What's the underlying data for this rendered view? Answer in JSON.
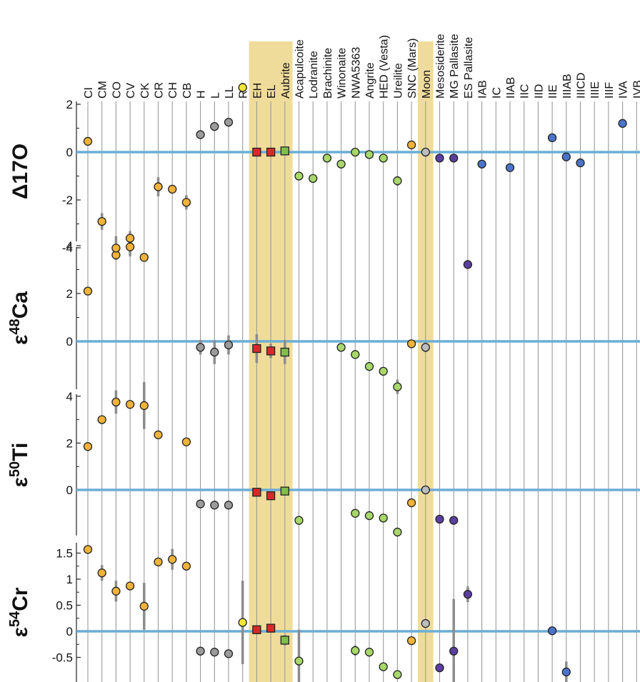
{
  "colors": {
    "carbonaceous": "#f0b33a",
    "ordinary": "#9b9b9b",
    "rumuruti": "#f2e63a",
    "enstatite": "#d62a2a",
    "aubrite": "#7fbf4a",
    "achondrite": "#a7d86a",
    "moon": "#bdbdbd",
    "mesosiderite": "#5a3fa0",
    "iron": "#4b74c9",
    "highlight": "#f0dc9a",
    "zeroline": "#6aaed6",
    "errorbar": "#8c8c8c",
    "gridline": "#9a9a9a"
  },
  "chart_data": {
    "type": "scatter",
    "categories": [
      "CI",
      "CM",
      "CO",
      "CV",
      "CK",
      "CR",
      "CH",
      "CB",
      "H",
      "L",
      "LL",
      "R",
      "EH",
      "EL",
      "Aubrite",
      "Acapulcoite",
      "Lodranite",
      "Brachinite",
      "Winonaite",
      "NWA5363",
      "Angrite",
      "HED (Vesta)",
      "Ureilite",
      "SNC (Mars)",
      "Moon",
      "Mesosiderite",
      "MG Pallasite",
      "ES Pallasite",
      "IAB",
      "IC",
      "IIAB",
      "IIC",
      "IID",
      "IIE",
      "IIIAB",
      "IIICD",
      "IIIE",
      "IIIF",
      "IVA",
      "IVB"
    ],
    "category_groups": [
      "carbonaceous",
      "carbonaceous",
      "carbonaceous",
      "carbonaceous",
      "carbonaceous",
      "carbonaceous",
      "carbonaceous",
      "carbonaceous",
      "ordinary",
      "ordinary",
      "ordinary",
      "rumuruti",
      "enstatite",
      "enstatite",
      "aubrite",
      "achondrite",
      "achondrite",
      "achondrite",
      "achondrite",
      "achondrite",
      "achondrite",
      "achondrite",
      "achondrite",
      "carbonaceous",
      "moon",
      "mesosiderite",
      "mesosiderite",
      "mesosiderite",
      "iron",
      "iron",
      "iron",
      "iron",
      "iron",
      "iron",
      "iron",
      "iron",
      "iron",
      "iron",
      "iron",
      "iron"
    ],
    "highlighted_categories": [
      "EH",
      "EL",
      "Aubrite",
      "Moon"
    ],
    "square_markers": [
      "EH",
      "EL",
      "Aubrite"
    ],
    "panels": [
      {
        "ylabel_base": "Δ",
        "ylabel_sup": "",
        "ylabel_rest": "17O",
        "ylim": [
          -5.2,
          3
        ],
        "yticks": [
          2,
          0,
          -2,
          -4
        ],
        "ytick_labels": [
          "2",
          "0",
          "-2",
          "-4"
        ],
        "points": [
          {
            "cat": 0,
            "y": 0.45,
            "err": 0.15
          },
          {
            "cat": 1,
            "y": -2.9,
            "err": 0.35
          },
          {
            "cat": 2,
            "y": -4.3,
            "err": 0.2
          },
          {
            "cat": 3,
            "y": -3.6,
            "err": 0.3
          },
          {
            "cat": 4,
            "y": -4.4,
            "err": 0.15
          },
          {
            "cat": 5,
            "y": -1.45,
            "err": 0.4
          },
          {
            "cat": 6,
            "y": -1.55,
            "err": 0.1
          },
          {
            "cat": 7,
            "y": -2.1,
            "err": 0.3
          },
          {
            "cat": 8,
            "y": 0.73,
            "err": 0.08
          },
          {
            "cat": 9,
            "y": 1.07,
            "err": 0.08
          },
          {
            "cat": 10,
            "y": 1.25,
            "err": 0.1
          },
          {
            "cat": 11,
            "y": 2.7,
            "err": 0.2
          },
          {
            "cat": 12,
            "y": 0.0,
            "err": 0.05
          },
          {
            "cat": 13,
            "y": 0.0,
            "err": 0.05
          },
          {
            "cat": 14,
            "y": 0.05,
            "err": 0.1
          },
          {
            "cat": 15,
            "y": -1.0,
            "err": 0.1
          },
          {
            "cat": 16,
            "y": -1.1,
            "err": 0.1
          },
          {
            "cat": 17,
            "y": -0.25,
            "err": 0.1
          },
          {
            "cat": 18,
            "y": -0.5,
            "err": 0.1
          },
          {
            "cat": 19,
            "y": 0.0,
            "err": 0.05
          },
          {
            "cat": 20,
            "y": -0.1,
            "err": 0.05
          },
          {
            "cat": 21,
            "y": -0.25,
            "err": 0.05
          },
          {
            "cat": 22,
            "y": -1.2,
            "err": 0.2
          },
          {
            "cat": 23,
            "y": 0.3,
            "err": 0.05
          },
          {
            "cat": 24,
            "y": 0.0,
            "err": 0.02
          },
          {
            "cat": 25,
            "y": -0.25,
            "err": 0.05
          },
          {
            "cat": 26,
            "y": -0.25,
            "err": 0.05
          },
          {
            "cat": 27,
            "y": -4.7,
            "err": 0.1
          },
          {
            "cat": 28,
            "y": -0.5,
            "err": 0.1
          },
          {
            "cat": 30,
            "y": -0.65,
            "err": 0.1
          },
          {
            "cat": 33,
            "y": 0.6,
            "err": 0.1
          },
          {
            "cat": 34,
            "y": -0.2,
            "err": 0.05
          },
          {
            "cat": 35,
            "y": -0.45,
            "err": 0.05
          },
          {
            "cat": 38,
            "y": 1.2,
            "err": 0.1
          }
        ]
      },
      {
        "ylabel_base": "ε",
        "ylabel_sup": "48",
        "ylabel_rest": "Ca",
        "ylim": [
          -3.2,
          4.5
        ],
        "yticks": [
          4,
          2,
          0
        ],
        "ytick_labels": [
          "4",
          "2",
          "0"
        ],
        "points": [
          {
            "cat": 0,
            "y": 2.1,
            "err": 0.1
          },
          {
            "cat": 2,
            "y": 3.9,
            "err": 0.5
          },
          {
            "cat": 3,
            "y": 3.95,
            "err": 0.4
          },
          {
            "cat": 8,
            "y": -0.25,
            "err": 0.3
          },
          {
            "cat": 9,
            "y": -0.45,
            "err": 0.5
          },
          {
            "cat": 10,
            "y": -0.15,
            "err": 0.4
          },
          {
            "cat": 12,
            "y": -0.3,
            "err": 0.6
          },
          {
            "cat": 13,
            "y": -0.4,
            "err": 0.3
          },
          {
            "cat": 14,
            "y": -0.45,
            "err": 0.5
          },
          {
            "cat": 18,
            "y": -0.25,
            "err": 0.1
          },
          {
            "cat": 19,
            "y": -0.55,
            "err": 0.1
          },
          {
            "cat": 20,
            "y": -1.05,
            "err": 0.1
          },
          {
            "cat": 21,
            "y": -1.25,
            "err": 0.15
          },
          {
            "cat": 22,
            "y": -1.9,
            "err": 0.3
          },
          {
            "cat": 23,
            "y": -0.1,
            "err": 0.1
          },
          {
            "cat": 24,
            "y": -0.25,
            "err": 0.2
          }
        ]
      },
      {
        "ylabel_base": "ε",
        "ylabel_sup": "50",
        "ylabel_rest": "Ti",
        "ylim": [
          -2.2,
          4.5
        ],
        "yticks": [
          4,
          2,
          0
        ],
        "ytick_labels": [
          "4",
          "2",
          "0"
        ],
        "points": [
          {
            "cat": 0,
            "y": 1.85,
            "err": 0.1
          },
          {
            "cat": 1,
            "y": 3.0,
            "err": 0.1
          },
          {
            "cat": 2,
            "y": 3.75,
            "err": 0.5
          },
          {
            "cat": 3,
            "y": 3.65,
            "err": 0.1
          },
          {
            "cat": 4,
            "y": 3.6,
            "err": 1.0
          },
          {
            "cat": 5,
            "y": 2.35,
            "err": 0.1
          },
          {
            "cat": 7,
            "y": 2.05,
            "err": 0.1
          },
          {
            "cat": 8,
            "y": -0.6,
            "err": 0.1
          },
          {
            "cat": 9,
            "y": -0.65,
            "err": 0.1
          },
          {
            "cat": 10,
            "y": -0.65,
            "err": 0.1
          },
          {
            "cat": 12,
            "y": -0.1,
            "err": 0.1
          },
          {
            "cat": 13,
            "y": -0.25,
            "err": 0.1
          },
          {
            "cat": 14,
            "y": -0.05,
            "err": 0.1
          },
          {
            "cat": 15,
            "y": -1.3,
            "err": 0.1
          },
          {
            "cat": 19,
            "y": -1.0,
            "err": 0.1
          },
          {
            "cat": 20,
            "y": -1.1,
            "err": 0.1
          },
          {
            "cat": 21,
            "y": -1.2,
            "err": 0.1
          },
          {
            "cat": 22,
            "y": -1.8,
            "err": 0.1
          },
          {
            "cat": 23,
            "y": -0.55,
            "err": 0.1
          },
          {
            "cat": 24,
            "y": 0.0,
            "err": 0.05
          },
          {
            "cat": 25,
            "y": -1.25,
            "err": 0.1
          },
          {
            "cat": 26,
            "y": -1.3,
            "err": 0.1
          }
        ]
      },
      {
        "ylabel_base": "ε",
        "ylabel_sup": "54",
        "ylabel_rest": "Cr",
        "ylim": [
          -0.95,
          1.7
        ],
        "yticks": [
          1.5,
          1,
          0.5,
          0,
          -0.5
        ],
        "ytick_labels": [
          "1.5",
          "1",
          "0.5",
          "0",
          "-0.5"
        ],
        "points": [
          {
            "cat": 0,
            "y": 1.57,
            "err": 0.05
          },
          {
            "cat": 1,
            "y": 1.12,
            "err": 0.15
          },
          {
            "cat": 2,
            "y": 0.77,
            "err": 0.2
          },
          {
            "cat": 3,
            "y": 0.87,
            "err": 0.05
          },
          {
            "cat": 4,
            "y": 0.48,
            "err": 0.45
          },
          {
            "cat": 5,
            "y": 1.33,
            "err": 0.05
          },
          {
            "cat": 6,
            "y": 1.38,
            "err": 0.2
          },
          {
            "cat": 7,
            "y": 1.25,
            "err": 0.05
          },
          {
            "cat": 8,
            "y": -0.38,
            "err": 0.05
          },
          {
            "cat": 9,
            "y": -0.4,
            "err": 0.05
          },
          {
            "cat": 10,
            "y": -0.43,
            "err": 0.05
          },
          {
            "cat": 11,
            "y": 0.17,
            "err": 0.8
          },
          {
            "cat": 12,
            "y": 0.03,
            "err": 0.05
          },
          {
            "cat": 13,
            "y": 0.06,
            "err": 0.05
          },
          {
            "cat": 14,
            "y": -0.17,
            "err": 0.1
          },
          {
            "cat": 15,
            "y": -0.57,
            "err": 0.6
          },
          {
            "cat": 19,
            "y": -0.37,
            "err": 0.1
          },
          {
            "cat": 20,
            "y": -0.4,
            "err": 0.05
          },
          {
            "cat": 21,
            "y": -0.68,
            "err": 0.05
          },
          {
            "cat": 22,
            "y": -0.83,
            "err": 0.05
          },
          {
            "cat": 23,
            "y": -0.18,
            "err": 0.05
          },
          {
            "cat": 24,
            "y": 0.15,
            "err": 0.02
          },
          {
            "cat": 25,
            "y": -0.7,
            "err": 0.05
          },
          {
            "cat": 26,
            "y": -0.38,
            "err": 1.0
          },
          {
            "cat": 27,
            "y": 0.71,
            "err": 0.15
          },
          {
            "cat": 33,
            "y": 0.01,
            "err": 0.05
          },
          {
            "cat": 34,
            "y": -0.78,
            "err": 0.2
          }
        ]
      }
    ]
  }
}
